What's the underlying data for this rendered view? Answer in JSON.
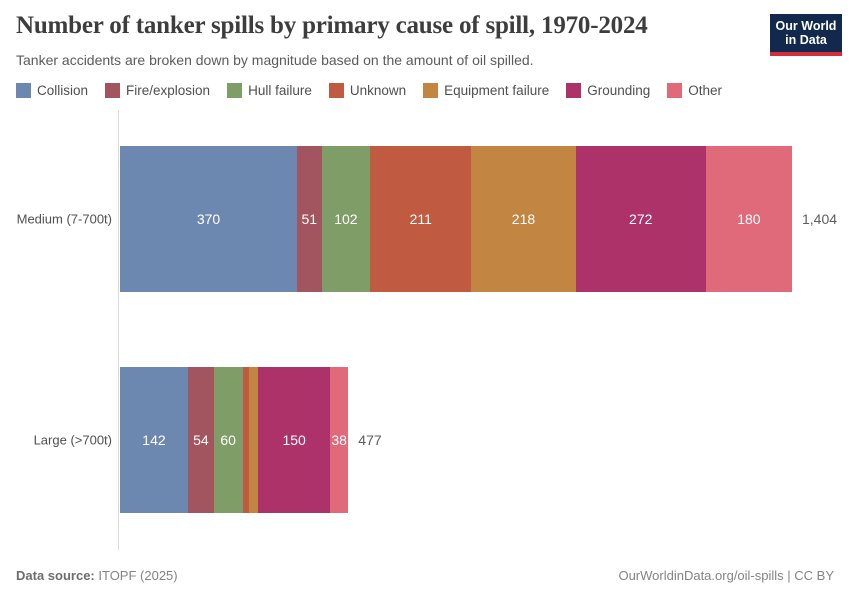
{
  "header": {
    "title": "Number of tanker spills by primary cause of spill, 1970-2024",
    "subtitle": "Tanker accidents are broken down by magnitude based on the amount of oil spilled."
  },
  "logo": {
    "line1": "Our World",
    "line2": "in Data",
    "bg_color": "#12294d",
    "accent_color": "#d12f3d"
  },
  "chart_data": {
    "type": "bar",
    "subtype": "horizontal-stacked",
    "categories": [
      "Medium (7-700t)",
      "Large (>700t)"
    ],
    "series": [
      {
        "name": "Collision",
        "color": "#6d88b0",
        "values": [
          370,
          142
        ]
      },
      {
        "name": "Fire/explosion",
        "color": "#a2555f",
        "values": [
          51,
          54
        ]
      },
      {
        "name": "Hull failure",
        "color": "#7f9d67",
        "values": [
          102,
          60
        ]
      },
      {
        "name": "Unknown",
        "color": "#c05a41",
        "values": [
          211,
          14
        ]
      },
      {
        "name": "Equipment failure",
        "color": "#c28642",
        "values": [
          218,
          19
        ]
      },
      {
        "name": "Grounding",
        "color": "#ad3269",
        "values": [
          272,
          150
        ]
      },
      {
        "name": "Other",
        "color": "#e0697a",
        "values": [
          180,
          38
        ]
      }
    ],
    "row_totals": [
      1404,
      477
    ],
    "row_total_labels": [
      "1,404",
      "477"
    ],
    "xlim": [
      0,
      1404
    ],
    "legend_position": "top",
    "value_labels": "inside-white",
    "grid": false
  },
  "footer": {
    "source_label": "Data source:",
    "source_value": "ITOPF (2025)",
    "link": "OurWorldinData.org/oil-spills | CC BY"
  }
}
